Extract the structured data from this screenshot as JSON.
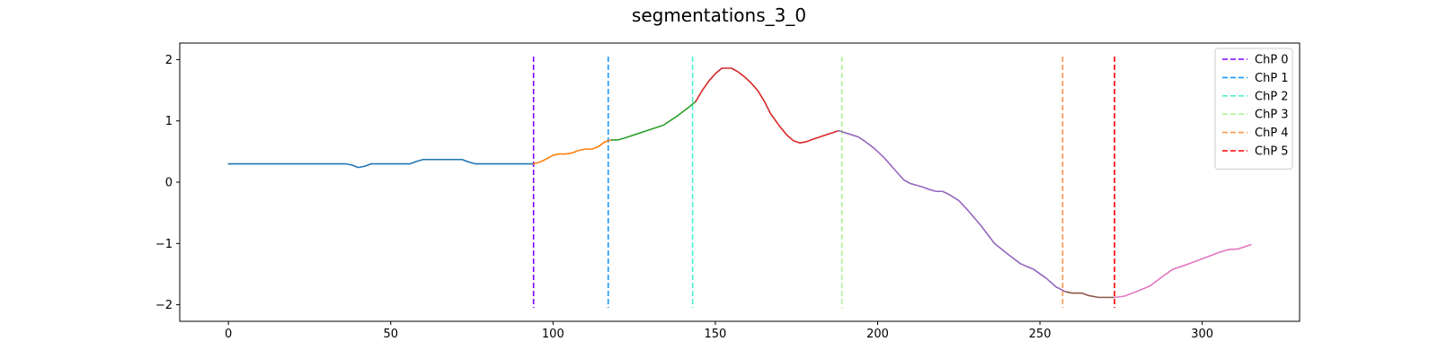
{
  "chart_data": {
    "type": "line",
    "title": "segmentations_3_0",
    "xlabel": "",
    "ylabel": "",
    "xlim": [
      -15,
      330
    ],
    "ylim": [
      -2.27,
      2.27
    ],
    "xticks": [
      0,
      50,
      100,
      150,
      200,
      250,
      300
    ],
    "yticks": [
      2,
      1,
      0,
      -1,
      -2
    ],
    "ytick_labels": [
      "2",
      "1",
      "0",
      "−1",
      "−2"
    ],
    "grid": false,
    "legend_position": "top-right",
    "segments": [
      {
        "color": "#1f77b4",
        "points": [
          [
            0,
            0.3
          ],
          [
            36,
            0.3
          ],
          [
            38,
            0.28
          ],
          [
            40,
            0.24
          ],
          [
            42,
            0.26
          ],
          [
            44,
            0.3
          ],
          [
            56,
            0.3
          ],
          [
            58,
            0.34
          ],
          [
            60,
            0.37
          ],
          [
            72,
            0.37
          ],
          [
            74,
            0.33
          ],
          [
            76,
            0.3
          ],
          [
            94,
            0.3
          ]
        ]
      },
      {
        "color": "#ff7f0e",
        "points": [
          [
            94,
            0.3
          ],
          [
            96,
            0.33
          ],
          [
            98,
            0.38
          ],
          [
            100,
            0.44
          ],
          [
            102,
            0.46
          ],
          [
            104,
            0.46
          ],
          [
            106,
            0.48
          ],
          [
            108,
            0.52
          ],
          [
            110,
            0.54
          ],
          [
            112,
            0.54
          ],
          [
            114,
            0.58
          ],
          [
            116,
            0.66
          ],
          [
            118,
            0.69
          ]
        ]
      },
      {
        "color": "#2ca02c",
        "points": [
          [
            118,
            0.69
          ],
          [
            120,
            0.69
          ],
          [
            122,
            0.72
          ],
          [
            126,
            0.79
          ],
          [
            130,
            0.86
          ],
          [
            134,
            0.93
          ],
          [
            136,
            1.0
          ],
          [
            138,
            1.07
          ],
          [
            140,
            1.15
          ],
          [
            142,
            1.23
          ],
          [
            144,
            1.32
          ]
        ]
      },
      {
        "color": "#d62728",
        "points": [
          [
            144,
            1.32
          ],
          [
            146,
            1.5
          ],
          [
            148,
            1.65
          ],
          [
            150,
            1.77
          ],
          [
            152,
            1.86
          ],
          [
            155,
            1.86
          ],
          [
            157,
            1.8
          ],
          [
            159,
            1.72
          ],
          [
            161,
            1.62
          ],
          [
            163,
            1.5
          ],
          [
            165,
            1.33
          ],
          [
            167,
            1.12
          ],
          [
            170,
            0.9
          ],
          [
            172,
            0.77
          ],
          [
            174,
            0.68
          ],
          [
            176,
            0.64
          ],
          [
            178,
            0.66
          ],
          [
            180,
            0.7
          ],
          [
            184,
            0.77
          ],
          [
            188,
            0.84
          ]
        ]
      },
      {
        "color": "#9467bd",
        "points": [
          [
            188,
            0.84
          ],
          [
            191,
            0.79
          ],
          [
            194,
            0.74
          ],
          [
            196,
            0.67
          ],
          [
            199,
            0.55
          ],
          [
            202,
            0.4
          ],
          [
            205,
            0.22
          ],
          [
            208,
            0.04
          ],
          [
            210,
            -0.02
          ],
          [
            214,
            -0.08
          ],
          [
            216,
            -0.12
          ],
          [
            218,
            -0.15
          ],
          [
            220,
            -0.15
          ],
          [
            222,
            -0.2
          ],
          [
            225,
            -0.3
          ],
          [
            228,
            -0.47
          ],
          [
            232,
            -0.72
          ],
          [
            236,
            -1.0
          ],
          [
            240,
            -1.17
          ],
          [
            244,
            -1.33
          ],
          [
            248,
            -1.42
          ],
          [
            252,
            -1.57
          ],
          [
            255,
            -1.71
          ],
          [
            258,
            -1.79
          ]
        ]
      },
      {
        "color": "#8c564b",
        "points": [
          [
            258,
            -1.79
          ],
          [
            260,
            -1.81
          ],
          [
            263,
            -1.81
          ],
          [
            265,
            -1.85
          ],
          [
            268,
            -1.88
          ],
          [
            273,
            -1.88
          ]
        ]
      },
      {
        "color": "#e377c2",
        "points": [
          [
            273,
            -1.88
          ],
          [
            276,
            -1.86
          ],
          [
            280,
            -1.78
          ],
          [
            284,
            -1.69
          ],
          [
            288,
            -1.53
          ],
          [
            291,
            -1.42
          ],
          [
            296,
            -1.33
          ],
          [
            300,
            -1.25
          ],
          [
            305,
            -1.15
          ],
          [
            308,
            -1.1
          ],
          [
            311,
            -1.09
          ],
          [
            315,
            -1.02
          ]
        ]
      }
    ],
    "changepoints": [
      {
        "name": "ChP 0",
        "x": 94,
        "color": "#8000ff"
      },
      {
        "name": "ChP 1",
        "x": 117,
        "color": "#1996f3"
      },
      {
        "name": "ChP 2",
        "x": 143,
        "color": "#4cf2ce"
      },
      {
        "name": "ChP 3",
        "x": 189,
        "color": "#b2f396"
      },
      {
        "name": "ChP 4",
        "x": 257,
        "color": "#ff964f"
      },
      {
        "name": "ChP 5",
        "x": 273,
        "color": "#ff0000"
      }
    ],
    "changepoint_yrange": [
      -2.05,
      2.05
    ]
  }
}
